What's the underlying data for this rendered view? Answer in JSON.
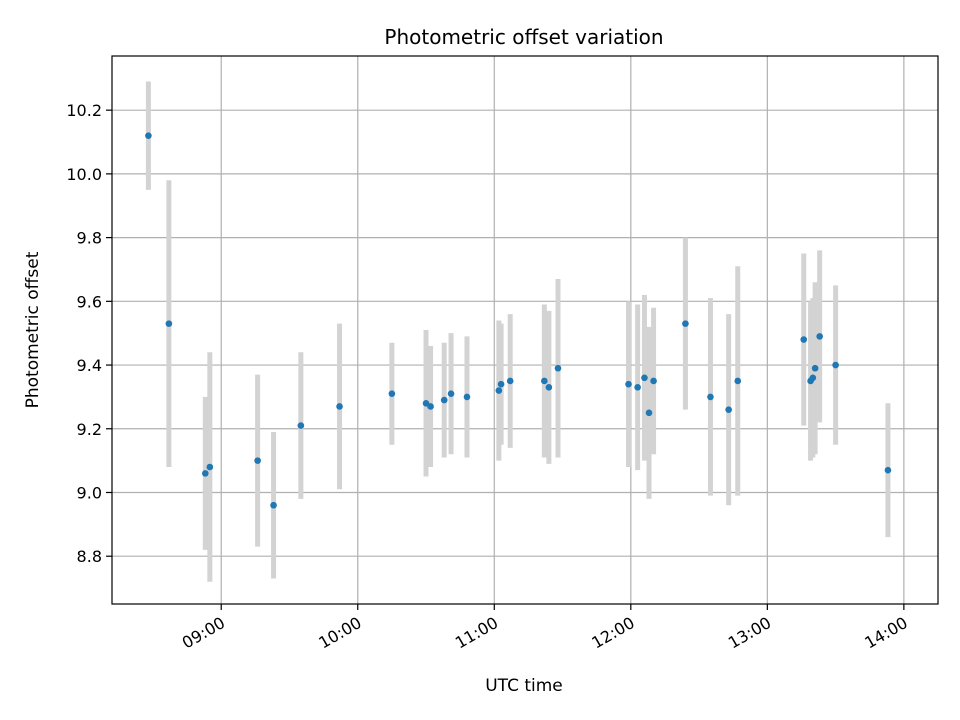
{
  "chart_data": {
    "type": "scatter",
    "title": "Photometric offset variation",
    "xlabel": "UTC time",
    "ylabel": "Photometric offset",
    "x_ticks": [
      "09:00",
      "10:00",
      "11:00",
      "12:00",
      "13:00",
      "14:00"
    ],
    "y_ticks": [
      "8.8",
      "9.0",
      "9.2",
      "9.4",
      "9.6",
      "9.8",
      "10.0",
      "10.2"
    ],
    "xlim": [
      "08:12",
      "14:15"
    ],
    "ylim": [
      8.65,
      10.37
    ],
    "grid": true,
    "colors": {
      "point": "#1f77b4",
      "errorbar": "#d3d3d3",
      "grid": "#b0b0b0"
    },
    "points": [
      {
        "x": "08:28",
        "y": 10.12,
        "err": 0.17
      },
      {
        "x": "08:37",
        "y": 9.53,
        "err": 0.45
      },
      {
        "x": "08:53",
        "y": 9.06,
        "err": 0.24
      },
      {
        "x": "08:55",
        "y": 9.08,
        "err": 0.36
      },
      {
        "x": "09:16",
        "y": 9.1,
        "err": 0.27
      },
      {
        "x": "09:23",
        "y": 8.96,
        "err": 0.23
      },
      {
        "x": "09:35",
        "y": 9.21,
        "err": 0.23
      },
      {
        "x": "09:52",
        "y": 9.27,
        "err": 0.26
      },
      {
        "x": "10:15",
        "y": 9.31,
        "err": 0.16
      },
      {
        "x": "10:30",
        "y": 9.28,
        "err": 0.23
      },
      {
        "x": "10:32",
        "y": 9.27,
        "err": 0.19
      },
      {
        "x": "10:38",
        "y": 9.29,
        "err": 0.18
      },
      {
        "x": "10:41",
        "y": 9.31,
        "err": 0.19
      },
      {
        "x": "10:48",
        "y": 9.3,
        "err": 0.19
      },
      {
        "x": "11:02",
        "y": 9.32,
        "err": 0.22
      },
      {
        "x": "11:03",
        "y": 9.34,
        "err": 0.19
      },
      {
        "x": "11:07",
        "y": 9.35,
        "err": 0.21
      },
      {
        "x": "11:22",
        "y": 9.35,
        "err": 0.24
      },
      {
        "x": "11:24",
        "y": 9.33,
        "err": 0.24
      },
      {
        "x": "11:28",
        "y": 9.39,
        "err": 0.28
      },
      {
        "x": "11:59",
        "y": 9.34,
        "err": 0.26
      },
      {
        "x": "12:03",
        "y": 9.33,
        "err": 0.26
      },
      {
        "x": "12:06",
        "y": 9.36,
        "err": 0.26
      },
      {
        "x": "12:08",
        "y": 9.25,
        "err": 0.27
      },
      {
        "x": "12:10",
        "y": 9.35,
        "err": 0.23
      },
      {
        "x": "12:24",
        "y": 9.53,
        "err": 0.27
      },
      {
        "x": "12:35",
        "y": 9.3,
        "err": 0.31
      },
      {
        "x": "12:43",
        "y": 9.26,
        "err": 0.3
      },
      {
        "x": "12:47",
        "y": 9.35,
        "err": 0.36
      },
      {
        "x": "13:16",
        "y": 9.48,
        "err": 0.27
      },
      {
        "x": "13:19",
        "y": 9.35,
        "err": 0.25
      },
      {
        "x": "13:20",
        "y": 9.36,
        "err": 0.25
      },
      {
        "x": "13:21",
        "y": 9.39,
        "err": 0.27
      },
      {
        "x": "13:23",
        "y": 9.49,
        "err": 0.27
      },
      {
        "x": "13:30",
        "y": 9.4,
        "err": 0.25
      },
      {
        "x": "13:53",
        "y": 9.07,
        "err": 0.21
      }
    ]
  }
}
